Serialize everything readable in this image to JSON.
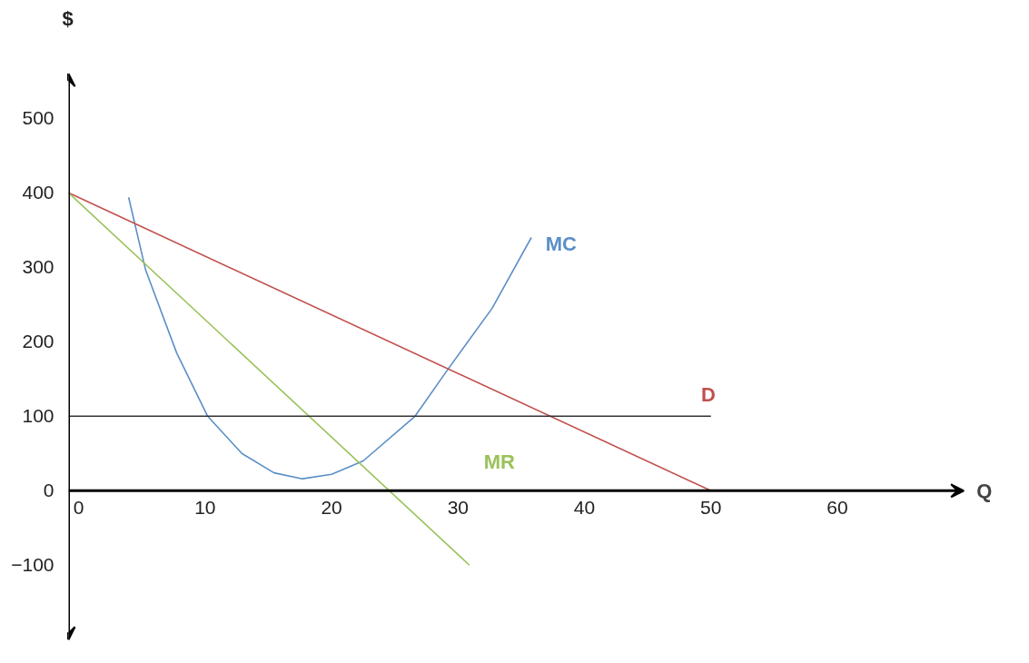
{
  "chart_data": {
    "type": "line",
    "xlabel": "Q",
    "ylabel": "$",
    "xlim": [
      -0.8,
      70
    ],
    "ylim": [
      -200,
      560
    ],
    "xticks": [
      0,
      10,
      20,
      30,
      40,
      50,
      60
    ],
    "yticks": [
      -100,
      0,
      100,
      200,
      300,
      400,
      500
    ],
    "grid": false,
    "marker": "none",
    "line_style": "solid",
    "series": [
      {
        "name": "MC",
        "color": "#5b8fc7",
        "x": [
          3.95,
          5.3,
          7.75,
          10.2,
          12.9,
          15.45,
          17.7,
          20,
          22.5,
          26.6,
          29.2,
          32.7,
          35.8
        ],
        "values": [
          394,
          296,
          185,
          100,
          50,
          24,
          16,
          22,
          40,
          100,
          163,
          245,
          340
        ]
      },
      {
        "name": "D",
        "color": "#c0504d",
        "x": [
          -0.8,
          50
        ],
        "values": [
          400,
          0
        ]
      },
      {
        "name": "MR",
        "color": "#9bc25a",
        "x": [
          -0.8,
          30.9
        ],
        "values": [
          400,
          -100
        ]
      },
      {
        "color": "#333333",
        "x": [
          -0.8,
          50
        ],
        "values": [
          100,
          100
        ]
      }
    ]
  }
}
